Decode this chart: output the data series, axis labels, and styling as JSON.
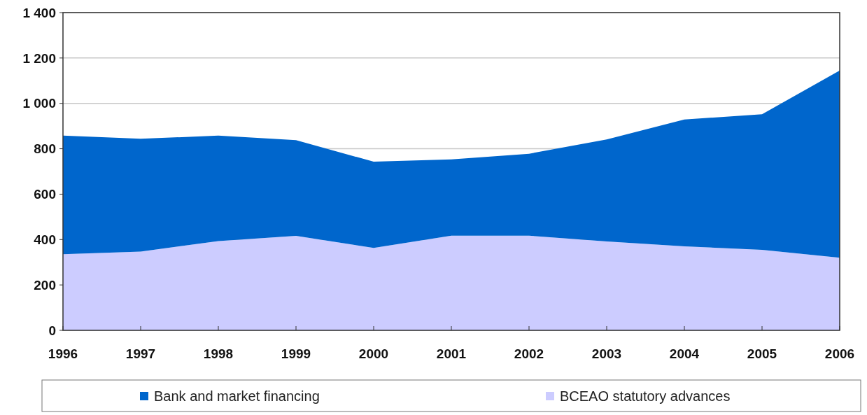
{
  "chart_data": {
    "type": "area",
    "stacked": true,
    "categories": [
      "1996",
      "1997",
      "1998",
      "1999",
      "2000",
      "2001",
      "2002",
      "2003",
      "2004",
      "2005",
      "2006"
    ],
    "series": [
      {
        "name": "BCEAO statutory advances",
        "color": "#ccccff",
        "values": [
          335,
          347,
          393,
          416,
          363,
          417,
          417,
          392,
          370,
          355,
          320
        ]
      },
      {
        "name": "Bank and market financing",
        "color": "#0066cc",
        "values": [
          523,
          497,
          465,
          422,
          380,
          336,
          361,
          449,
          559,
          597,
          825
        ]
      }
    ],
    "ylim": [
      0,
      1400
    ],
    "yticks": [
      0,
      200,
      400,
      600,
      800,
      {
        "value": 1000,
        "label": "1 000"
      },
      {
        "value": 1200,
        "label": "1 200"
      },
      {
        "value": 1400,
        "label": "1 400"
      }
    ],
    "grid": "y",
    "legend": "bottom"
  }
}
